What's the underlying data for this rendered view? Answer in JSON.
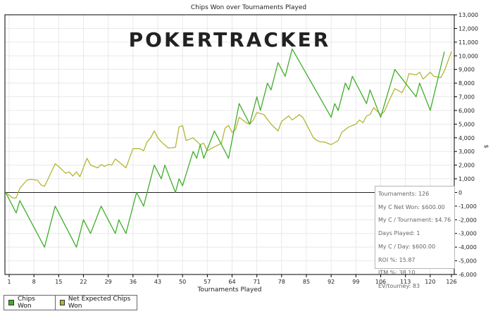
{
  "chart_data": {
    "type": "line",
    "title": "Chips Won over Tournaments Played",
    "xlabel": "Tournaments Played",
    "ylabel": "",
    "xlim": [
      0,
      127
    ],
    "ylim": [
      -6000,
      13000
    ],
    "x_ticks": [
      1,
      8,
      15,
      22,
      29,
      36,
      43,
      50,
      57,
      64,
      71,
      78,
      85,
      92,
      99,
      106,
      113,
      120,
      126
    ],
    "y_ticks": [
      13000,
      12000,
      11000,
      10000,
      9000,
      8000,
      7000,
      6000,
      5000,
      4000,
      3000,
      2000,
      1000,
      0,
      -1000,
      -2000,
      -3000,
      -4000,
      -5000,
      -6000
    ],
    "y_tick_labels": [
      "13,000",
      "12,000",
      "11,000",
      "10,000",
      "9,000",
      "8,000",
      "7,000",
      "6,000",
      "5,000",
      "4,000",
      "3,000",
      "2,000",
      "1,000",
      "0",
      "-1,000",
      "-2,000",
      "-3,000",
      "-4,000",
      "-5,000",
      "-6,000"
    ],
    "y_unit_label": "$",
    "grid": true,
    "legend": "bottom-left",
    "series": [
      {
        "name": "Chips Won",
        "color": "#3fae2a",
        "points": [
          [
            0,
            0
          ],
          [
            3,
            -1500
          ],
          [
            4,
            -600
          ],
          [
            11,
            -4000
          ],
          [
            14,
            -1000
          ],
          [
            20,
            -4000
          ],
          [
            22,
            -2000
          ],
          [
            24,
            -3000
          ],
          [
            27,
            -1000
          ],
          [
            31,
            -3000
          ],
          [
            32,
            -2000
          ],
          [
            34,
            -3000
          ],
          [
            37,
            0
          ],
          [
            39,
            -1000
          ],
          [
            42,
            2000
          ],
          [
            44,
            1000
          ],
          [
            45,
            2000
          ],
          [
            48,
            0
          ],
          [
            49,
            1000
          ],
          [
            50,
            500
          ],
          [
            53,
            3000
          ],
          [
            54,
            2500
          ],
          [
            55,
            3500
          ],
          [
            56,
            2500
          ],
          [
            59,
            4500
          ],
          [
            63,
            2500
          ],
          [
            66,
            6500
          ],
          [
            69,
            5000
          ],
          [
            71,
            7000
          ],
          [
            72,
            6000
          ],
          [
            74,
            8000
          ],
          [
            75,
            7500
          ],
          [
            77,
            9500
          ],
          [
            79,
            8500
          ],
          [
            81,
            10500
          ],
          [
            92,
            5500
          ],
          [
            93,
            6500
          ],
          [
            94,
            6000
          ],
          [
            96,
            8000
          ],
          [
            97,
            7500
          ],
          [
            98,
            8500
          ],
          [
            102,
            6500
          ],
          [
            103,
            7500
          ],
          [
            106,
            5500
          ],
          [
            110,
            9000
          ],
          [
            116,
            7000
          ],
          [
            117,
            8000
          ],
          [
            120,
            6000
          ],
          [
            124,
            10300
          ]
        ]
      },
      {
        "name": "Net Expected Chips Won",
        "color": "#b5b536",
        "points": [
          [
            0,
            0
          ],
          [
            2,
            -400
          ],
          [
            3,
            -400
          ],
          [
            4,
            300
          ],
          [
            6,
            900
          ],
          [
            7,
            950
          ],
          [
            9,
            900
          ],
          [
            10,
            550
          ],
          [
            11,
            450
          ],
          [
            12,
            1000
          ],
          [
            14,
            2100
          ],
          [
            15,
            1900
          ],
          [
            17,
            1400
          ],
          [
            18,
            1500
          ],
          [
            19,
            1200
          ],
          [
            20,
            1500
          ],
          [
            21,
            1150
          ],
          [
            23,
            2500
          ],
          [
            24,
            2000
          ],
          [
            26,
            1800
          ],
          [
            27,
            2050
          ],
          [
            28,
            1900
          ],
          [
            29,
            2050
          ],
          [
            30,
            2000
          ],
          [
            31,
            2450
          ],
          [
            32,
            2250
          ],
          [
            34,
            1800
          ],
          [
            36,
            3200
          ],
          [
            38,
            3200
          ],
          [
            39,
            3050
          ],
          [
            40,
            3700
          ],
          [
            41,
            4000
          ],
          [
            42,
            4500
          ],
          [
            43,
            4000
          ],
          [
            44,
            3700
          ],
          [
            46,
            3250
          ],
          [
            48,
            3300
          ],
          [
            49,
            4800
          ],
          [
            50,
            4900
          ],
          [
            51,
            3800
          ],
          [
            53,
            4000
          ],
          [
            55,
            3500
          ],
          [
            56,
            3600
          ],
          [
            57,
            3050
          ],
          [
            58,
            3200
          ],
          [
            61,
            3600
          ],
          [
            62,
            4700
          ],
          [
            63,
            4900
          ],
          [
            64,
            4400
          ],
          [
            65,
            4600
          ],
          [
            66,
            5500
          ],
          [
            68,
            5100
          ],
          [
            69,
            5000
          ],
          [
            70,
            5300
          ],
          [
            71,
            5850
          ],
          [
            73,
            5700
          ],
          [
            75,
            5000
          ],
          [
            77,
            4500
          ],
          [
            78,
            5200
          ],
          [
            80,
            5600
          ],
          [
            81,
            5300
          ],
          [
            83,
            5700
          ],
          [
            84,
            5500
          ],
          [
            86,
            4500
          ],
          [
            87,
            4000
          ],
          [
            88,
            3800
          ],
          [
            89,
            3700
          ],
          [
            90,
            3700
          ],
          [
            92,
            3500
          ],
          [
            94,
            3800
          ],
          [
            95,
            4400
          ],
          [
            97,
            4800
          ],
          [
            99,
            5000
          ],
          [
            100,
            5300
          ],
          [
            101,
            5100
          ],
          [
            102,
            5600
          ],
          [
            103,
            5700
          ],
          [
            104,
            6200
          ],
          [
            106,
            5700
          ],
          [
            107,
            5900
          ],
          [
            108,
            6500
          ],
          [
            110,
            7600
          ],
          [
            112,
            7300
          ],
          [
            113,
            7800
          ],
          [
            114,
            8700
          ],
          [
            116,
            8600
          ],
          [
            117,
            8800
          ],
          [
            118,
            8300
          ],
          [
            120,
            8800
          ],
          [
            121,
            8500
          ],
          [
            123,
            8400
          ],
          [
            124,
            8900
          ],
          [
            126,
            10300
          ]
        ]
      }
    ]
  },
  "watermark": "POKERTRACKER",
  "stats": [
    "Tournaments: 126",
    "My C Net Won: $600.00",
    "My C / Tournament: $4.76",
    "Days Played: 1",
    "My C / Day: $600.00",
    "ROI %: 15.87",
    "ITM %: 38.10",
    "EV/tourney: 83"
  ],
  "colors": {
    "grid": "#e8e8e8",
    "axis": "#000000",
    "zero_line": "#222222",
    "watermark": "#e0e0e0"
  }
}
